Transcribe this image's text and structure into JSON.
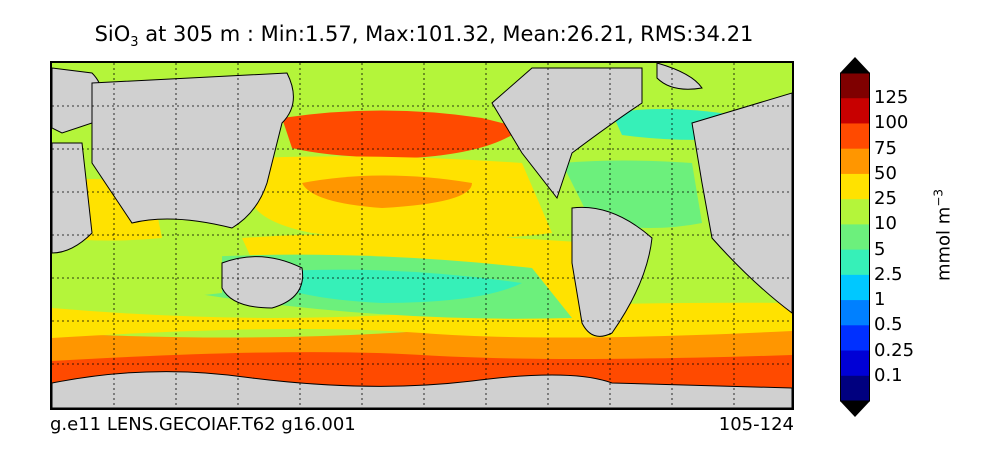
{
  "title": {
    "var": "SiO",
    "var_sub": "3",
    "rest": " at 305 m : Min:1.57, Max:101.32, Mean:26.21, RMS:34.21"
  },
  "footer": {
    "left": "g.e11 LENS.GECOIAF.T62 g16.001",
    "right": "105-124"
  },
  "colorbar": {
    "label": "mmol m",
    "label_sup": "−3",
    "ticks": [
      "125",
      "100",
      "75",
      "50",
      "25",
      "10",
      "5",
      "2.5",
      "1",
      "0.5",
      "0.25",
      "0.1"
    ],
    "colors": [
      "#7f0000",
      "#c80000",
      "#ff4a00",
      "#ff9600",
      "#ffe200",
      "#b4f53a",
      "#6cf07c",
      "#36f0b8",
      "#00c8ff",
      "#0080ff",
      "#0030ff",
      "#0000d6",
      "#00007f"
    ],
    "extend_colors": {
      "top": "#000000",
      "bottom": "#000000"
    }
  },
  "map_colors": {
    "land": "#d0d0d0",
    "ice": "#ffffff"
  }
}
